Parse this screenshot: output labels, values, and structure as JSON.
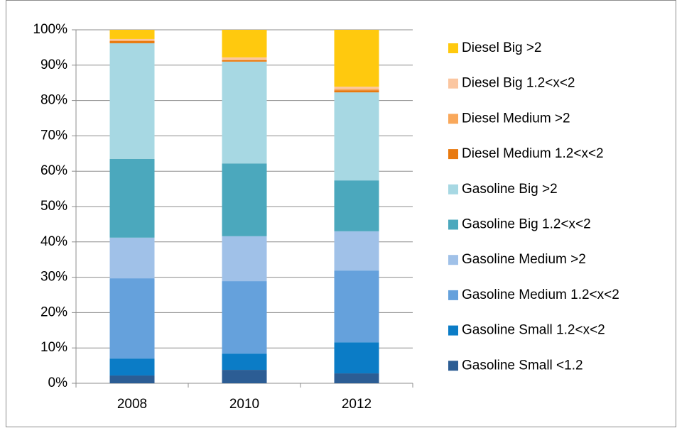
{
  "chart_data": {
    "type": "stacked_bar_100",
    "categories": [
      "2008",
      "2010",
      "2012"
    ],
    "series": [
      {
        "name": "Gasoline Small <1.2",
        "color": "#2c5d94",
        "values": [
          2.2,
          3.8,
          2.8
        ]
      },
      {
        "name": "Gasoline Small 1.2<x<2",
        "color": "#0b7cc6",
        "values": [
          4.8,
          4.6,
          8.8
        ]
      },
      {
        "name": "Gasoline Medium 1.2<x<2",
        "color": "#65a1dc",
        "values": [
          22.7,
          20.5,
          20.3
        ]
      },
      {
        "name": "Gasoline Medium >2",
        "color": "#a0c1e8",
        "values": [
          11.5,
          12.7,
          11.1
        ]
      },
      {
        "name": "Gasoline Big 1.2<x<2",
        "color": "#4ba8bd",
        "values": [
          22.3,
          20.6,
          14.4
        ]
      },
      {
        "name": "Gasoline Big >2",
        "color": "#a7d8e3",
        "values": [
          32.7,
          28.8,
          24.9
        ]
      },
      {
        "name": "Diesel Medium 1.2<x<2",
        "color": "#e8790f",
        "values": [
          0.6,
          0.4,
          0.6
        ]
      },
      {
        "name": "Diesel Medium >2",
        "color": "#f9a85b",
        "values": [
          0.2,
          0.2,
          0.4
        ]
      },
      {
        "name": "Diesel Big 1.2<x<2",
        "color": "#fbc6a0",
        "values": [
          0.4,
          0.6,
          0.6
        ]
      },
      {
        "name": "Diesel Big >2",
        "color": "#ffc90e",
        "values": [
          2.6,
          7.8,
          16.1
        ]
      }
    ],
    "ylim": [
      0,
      100
    ],
    "yticks": [
      {
        "value": 0,
        "label": "0%"
      },
      {
        "value": 10,
        "label": "10%"
      },
      {
        "value": 20,
        "label": "20%"
      },
      {
        "value": 30,
        "label": "30%"
      },
      {
        "value": 40,
        "label": "40%"
      },
      {
        "value": 50,
        "label": "50%"
      },
      {
        "value": 60,
        "label": "60%"
      },
      {
        "value": 70,
        "label": "70%"
      },
      {
        "value": 80,
        "label": "80%"
      },
      {
        "value": 90,
        "label": "90%"
      },
      {
        "value": 100,
        "label": "100%"
      }
    ],
    "grid": true,
    "legend": "right"
  }
}
